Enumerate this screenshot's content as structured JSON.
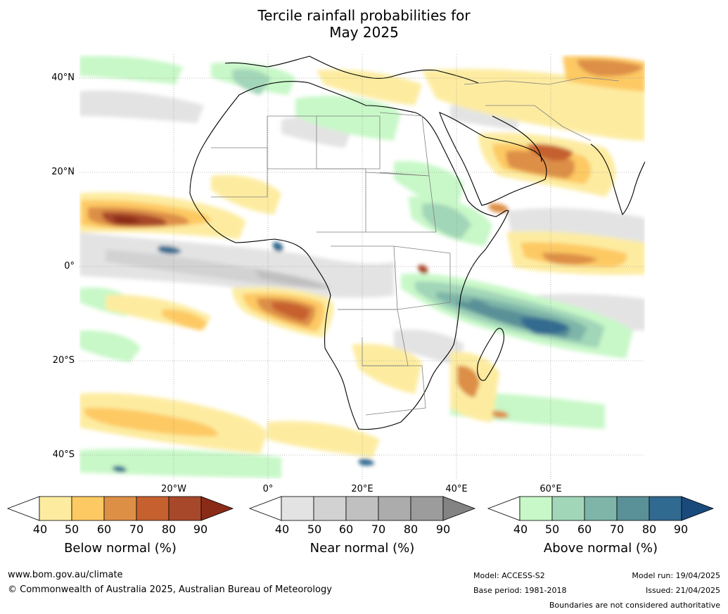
{
  "title": {
    "line1": "Tercile rainfall probabilities for",
    "line2": "May 2025"
  },
  "map": {
    "lat_labels": [
      "40°N",
      "20°N",
      "0°",
      "20°S",
      "40°S"
    ],
    "lon_labels": [
      "20°W",
      "0°",
      "20°E",
      "40°E",
      "60°E"
    ],
    "colors": {
      "below": [
        "#fdeca0",
        "#fdc963",
        "#dd8f46",
        "#c6612f",
        "#a8482a",
        "#8a2b18"
      ],
      "near": [
        "#e3e3e3",
        "#d2d2d2",
        "#c0c0c0",
        "#acacac",
        "#9c9c9c",
        "#838383"
      ],
      "above": [
        "#c8f8c8",
        "#a2d6b8",
        "#7eb5a8",
        "#5a9098",
        "#316a90",
        "#1a4a7c"
      ],
      "land": "#ffffff",
      "coast": "#000000",
      "border": "#7f7f7f",
      "grid": "#888888"
    }
  },
  "colorbars": [
    {
      "title": "Below normal (%)",
      "ticks": [
        "40",
        "50",
        "60",
        "70",
        "80",
        "90"
      ]
    },
    {
      "title": "Near normal (%)",
      "ticks": [
        "40",
        "50",
        "60",
        "70",
        "80",
        "90"
      ]
    },
    {
      "title": "Above normal (%)",
      "ticks": [
        "40",
        "50",
        "60",
        "70",
        "80",
        "90"
      ]
    }
  ],
  "footer": {
    "website": "www.bom.gov.au/climate",
    "copyright": "© Commonwealth of Australia 2025, Australian Bureau of Meteorology",
    "model": "Model: ACCESS-S2",
    "base_period": "Base period: 1981-2018",
    "model_run": "Model run: 19/04/2025",
    "issued": "Issued: 21/04/2025",
    "disclaimer": "Boundaries are not considered authoritative"
  }
}
